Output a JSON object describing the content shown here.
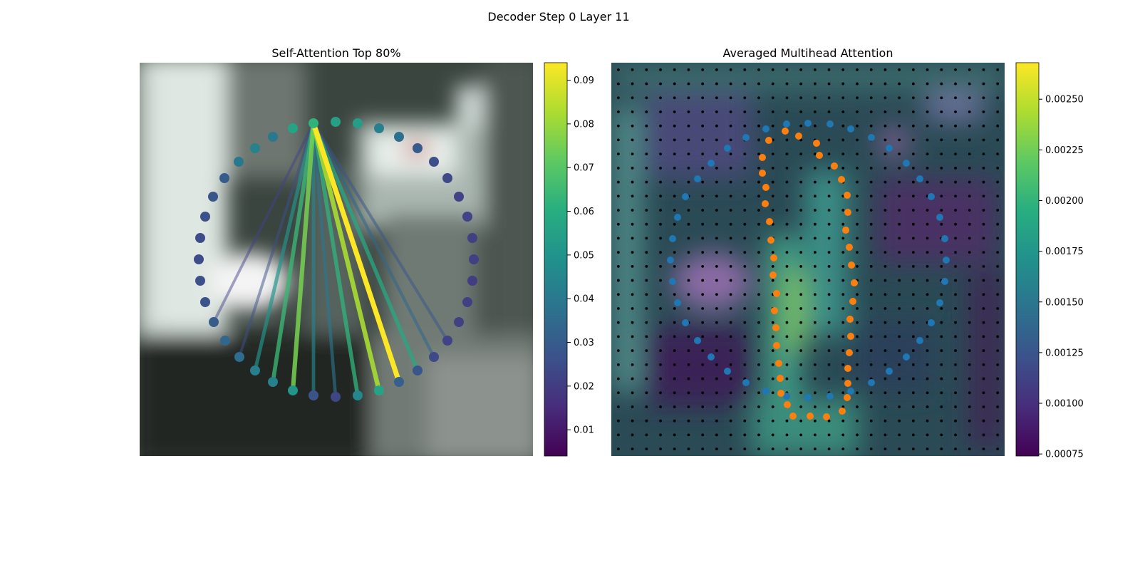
{
  "figure": {
    "suptitle": "Decoder Step 0 Layer 11"
  },
  "colors": {
    "viridis_stops": [
      "#440154",
      "#472d7b",
      "#3b528b",
      "#2c728e",
      "#21918c",
      "#28ae80",
      "#5ec962",
      "#addc30",
      "#fde725"
    ],
    "grid_dot": "#000000",
    "blue_points": "#1f77b4",
    "orange_points": "#ff7f0e"
  },
  "chart_data": [
    {
      "type": "scatter",
      "title": "Self-Attention Top 80%",
      "background": "blurred street-scene image",
      "colorbar": {
        "min": 0.004,
        "max": 0.094,
        "ticks": [
          0.01,
          0.02,
          0.03,
          0.04,
          0.05,
          0.06,
          0.07,
          0.08,
          0.09
        ],
        "tick_labels": [
          "0.01",
          "0.02",
          "0.03",
          "0.04",
          "0.05",
          "0.06",
          "0.07",
          "0.08",
          "0.09"
        ]
      },
      "query_point_index": 0,
      "points": [
        {
          "x": 440,
          "y": 173,
          "v": 0.062
        },
        {
          "x": 471,
          "y": 171,
          "v": 0.055
        },
        {
          "x": 502,
          "y": 173,
          "v": 0.054
        },
        {
          "x": 532,
          "y": 180,
          "v": 0.043
        },
        {
          "x": 560,
          "y": 192,
          "v": 0.037
        },
        {
          "x": 586,
          "y": 208,
          "v": 0.03
        },
        {
          "x": 609,
          "y": 227,
          "v": 0.026
        },
        {
          "x": 628,
          "y": 250,
          "v": 0.024
        },
        {
          "x": 644,
          "y": 276,
          "v": 0.022
        },
        {
          "x": 656,
          "y": 304,
          "v": 0.022
        },
        {
          "x": 663,
          "y": 334,
          "v": 0.021
        },
        {
          "x": 665,
          "y": 364,
          "v": 0.021
        },
        {
          "x": 663,
          "y": 394,
          "v": 0.02
        },
        {
          "x": 656,
          "y": 424,
          "v": 0.021
        },
        {
          "x": 644,
          "y": 452,
          "v": 0.021
        },
        {
          "x": 628,
          "y": 478,
          "v": 0.022
        },
        {
          "x": 609,
          "y": 501,
          "v": 0.024
        },
        {
          "x": 586,
          "y": 520,
          "v": 0.028
        },
        {
          "x": 560,
          "y": 536,
          "v": 0.031
        },
        {
          "x": 532,
          "y": 548,
          "v": 0.056
        },
        {
          "x": 502,
          "y": 555,
          "v": 0.045
        },
        {
          "x": 471,
          "y": 557,
          "v": 0.023
        },
        {
          "x": 440,
          "y": 555,
          "v": 0.027
        },
        {
          "x": 411,
          "y": 548,
          "v": 0.05
        },
        {
          "x": 383,
          "y": 536,
          "v": 0.043
        },
        {
          "x": 358,
          "y": 520,
          "v": 0.042
        },
        {
          "x": 336,
          "y": 501,
          "v": 0.036
        },
        {
          "x": 316,
          "y": 478,
          "v": 0.034
        },
        {
          "x": 300,
          "y": 452,
          "v": 0.03
        },
        {
          "x": 288,
          "y": 424,
          "v": 0.027
        },
        {
          "x": 281,
          "y": 394,
          "v": 0.026
        },
        {
          "x": 279,
          "y": 364,
          "v": 0.025
        },
        {
          "x": 281,
          "y": 334,
          "v": 0.025
        },
        {
          "x": 288,
          "y": 304,
          "v": 0.026
        },
        {
          "x": 299,
          "y": 276,
          "v": 0.028
        },
        {
          "x": 315,
          "y": 250,
          "v": 0.03
        },
        {
          "x": 335,
          "y": 227,
          "v": 0.04
        },
        {
          "x": 358,
          "y": 208,
          "v": 0.044
        },
        {
          "x": 383,
          "y": 192,
          "v": 0.04
        },
        {
          "x": 411,
          "y": 180,
          "v": 0.056
        }
      ],
      "lines": [
        {
          "to": 18,
          "v": 0.094
        },
        {
          "to": 19,
          "v": 0.082
        },
        {
          "to": 23,
          "v": 0.075
        },
        {
          "to": 24,
          "v": 0.064
        },
        {
          "to": 20,
          "v": 0.062
        },
        {
          "to": 17,
          "v": 0.058
        },
        {
          "to": 25,
          "v": 0.05
        },
        {
          "to": 22,
          "v": 0.045
        },
        {
          "to": 21,
          "v": 0.04
        },
        {
          "to": 16,
          "v": 0.034
        },
        {
          "to": 15,
          "v": 0.028
        },
        {
          "to": 26,
          "v": 0.026
        },
        {
          "to": 28,
          "v": 0.022
        }
      ]
    },
    {
      "type": "heatmap",
      "title": "Averaged Multihead Attention",
      "background": "blurred street-scene image with attention heatmap overlay and regular grid of reference dots",
      "grid": {
        "cols": 28,
        "rows": 28
      },
      "colorbar": {
        "min": 0.00074,
        "max": 0.00268,
        "ticks": [
          0.00075,
          0.001,
          0.00125,
          0.0015,
          0.00175,
          0.002,
          0.00225,
          0.0025
        ],
        "tick_labels": [
          "0.00075",
          "0.00100",
          "0.00125",
          "0.00150",
          "0.00175",
          "0.00200",
          "0.00225",
          "0.00250"
        ]
      },
      "blue_points": [
        [
          1134,
          173
        ],
        [
          1165,
          174
        ],
        [
          1194,
          181
        ],
        [
          1223,
          193
        ],
        [
          1248,
          208
        ],
        [
          1272,
          229
        ],
        [
          1291,
          251
        ],
        [
          1307,
          276
        ],
        [
          1319,
          305
        ],
        [
          1326,
          335
        ],
        [
          1328,
          365
        ],
        [
          1326,
          395
        ],
        [
          1319,
          425
        ],
        [
          1307,
          453
        ],
        [
          1291,
          478
        ],
        [
          1272,
          501
        ],
        [
          1248,
          521
        ],
        [
          1223,
          537
        ],
        [
          1194,
          549
        ],
        [
          1165,
          556
        ],
        [
          1134,
          558
        ],
        [
          1104,
          556
        ],
        [
          1075,
          549
        ],
        [
          1047,
          537
        ],
        [
          1021,
          521
        ],
        [
          998,
          501
        ],
        [
          979,
          478
        ],
        [
          962,
          453
        ],
        [
          951,
          425
        ],
        [
          944,
          395
        ],
        [
          941,
          365
        ],
        [
          944,
          335
        ],
        [
          951,
          305
        ],
        [
          962,
          276
        ],
        [
          979,
          251
        ],
        [
          998,
          229
        ],
        [
          1021,
          208
        ],
        [
          1047,
          193
        ],
        [
          1075,
          181
        ],
        [
          1104,
          174
        ]
      ],
      "orange_points": [
        [
          1102,
          184
        ],
        [
          1121,
          191
        ],
        [
          1146,
          201
        ],
        [
          1150,
          218
        ],
        [
          1171,
          233
        ],
        [
          1181,
          252
        ],
        [
          1189,
          274
        ],
        [
          1190,
          298
        ],
        [
          1187,
          323
        ],
        [
          1192,
          347
        ],
        [
          1195,
          372
        ],
        [
          1199,
          397
        ],
        [
          1197,
          423
        ],
        [
          1193,
          448
        ],
        [
          1194,
          472
        ],
        [
          1192,
          495
        ],
        [
          1190,
          517
        ],
        [
          1190,
          538
        ],
        [
          1189,
          558
        ],
        [
          1182,
          577
        ],
        [
          1160,
          585
        ],
        [
          1137,
          584
        ],
        [
          1113,
          584
        ],
        [
          1105,
          568
        ],
        [
          1096,
          552
        ],
        [
          1095,
          531
        ],
        [
          1093,
          510
        ],
        [
          1090,
          485
        ],
        [
          1089,
          460
        ],
        [
          1087,
          436
        ],
        [
          1090,
          412
        ],
        [
          1085,
          386
        ],
        [
          1086,
          362
        ],
        [
          1082,
          337
        ],
        [
          1080,
          311
        ],
        [
          1074,
          286
        ],
        [
          1075,
          263
        ],
        [
          1070,
          243
        ],
        [
          1070,
          221
        ],
        [
          1079,
          197
        ]
      ]
    }
  ]
}
